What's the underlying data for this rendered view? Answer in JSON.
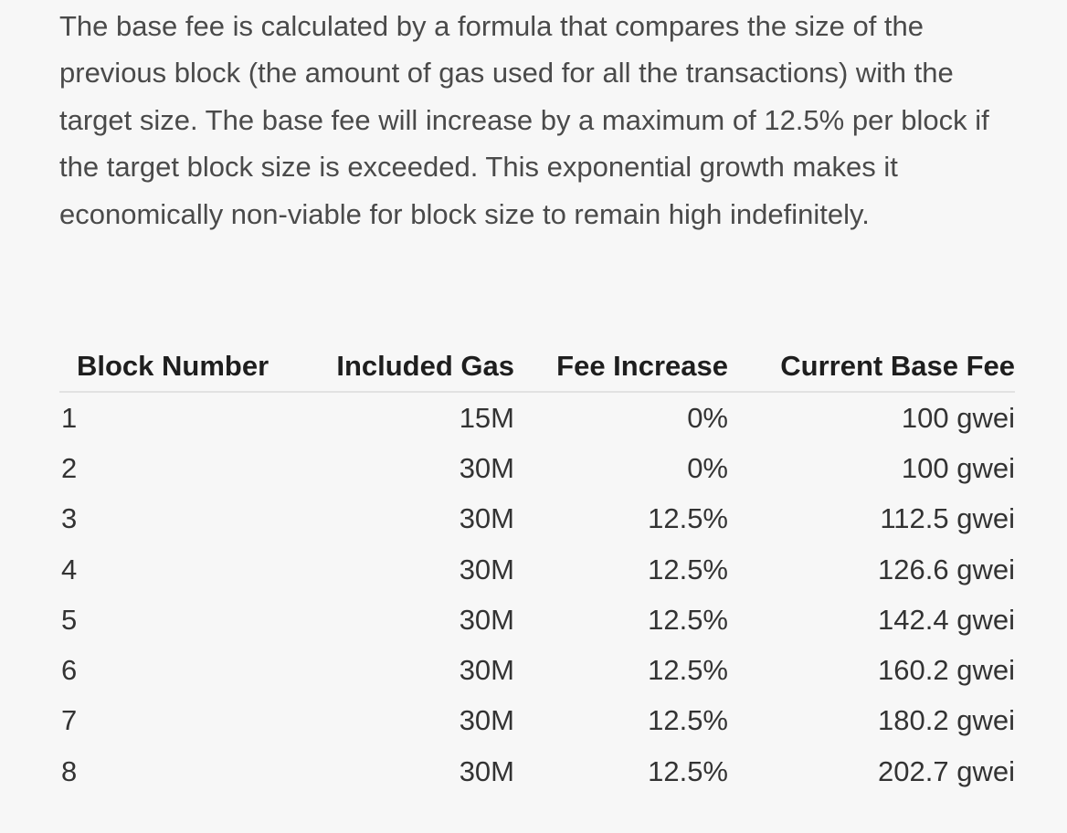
{
  "paragraph": "The base fee is calculated by a formula that compares the size of the previous block (the amount of gas used for all the transactions) with the target size. The base fee will increase by a maximum of 12.5% per block if the target block size is exceeded. This exponential growth makes it economically non-viable for block size to remain high indefinitely.",
  "table": {
    "headers": [
      "Block Number",
      "Included Gas",
      "Fee Increase",
      "Current Base Fee"
    ],
    "rows": [
      [
        "1",
        "15M",
        "0%",
        "100 gwei"
      ],
      [
        "2",
        "30M",
        "0%",
        "100 gwei"
      ],
      [
        "3",
        "30M",
        "12.5%",
        "112.5 gwei"
      ],
      [
        "4",
        "30M",
        "12.5%",
        "126.6 gwei"
      ],
      [
        "5",
        "30M",
        "12.5%",
        "142.4 gwei"
      ],
      [
        "6",
        "30M",
        "12.5%",
        "160.2 gwei"
      ],
      [
        "7",
        "30M",
        "12.5%",
        "180.2 gwei"
      ],
      [
        "8",
        "30M",
        "12.5%",
        "202.7 gwei"
      ]
    ]
  }
}
